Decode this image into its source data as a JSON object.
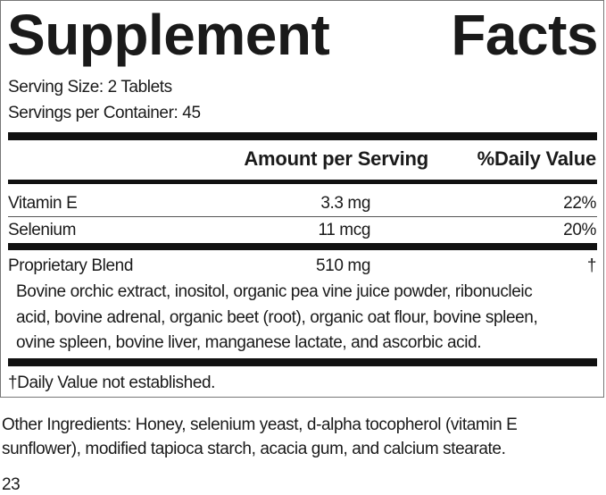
{
  "title": [
    "Supplement",
    "Facts"
  ],
  "serving_size": "Serving Size: 2 Tablets",
  "servings_per_container": "Servings per Container: 45",
  "table": {
    "header": [
      "Amount per Serving",
      "%Daily Value"
    ],
    "rows": [
      [
        "Vitamin E",
        "3.3 mg",
        "22%"
      ],
      [
        "Selenium",
        "11 mcg",
        "20%"
      ],
      [
        "Proprietary Blend",
        "510 mg",
        "†"
      ]
    ]
  },
  "blend_ingredients": [
    "Bovine orchic extract, inositol, organic pea vine juice powder, ribonucleic",
    "acid, bovine adrenal, organic beet (root), organic oat flour, bovine spleen,",
    "ovine spleen, bovine liver, manganese lactate, and ascorbic acid."
  ],
  "footnote": "†Daily Value not established.",
  "other_ingredients": [
    "Other Ingredients: Honey, selenium yeast, d-alpha tocopherol (vitamin E",
    "sunflower), modified tapioca starch, acacia gum, and calcium stearate."
  ],
  "page_number": "23"
}
